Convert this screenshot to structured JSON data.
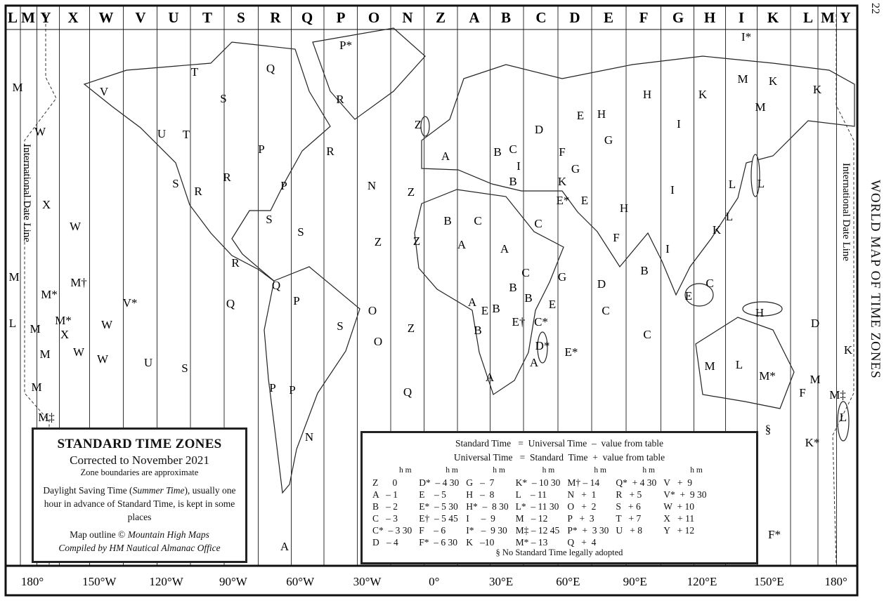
{
  "page_number": "22",
  "side_title": "WORLD MAP OF TIME ZONES",
  "header_zones": [
    "L",
    "M",
    "Y",
    "X",
    "W",
    "V",
    "U",
    "T",
    "S",
    "R",
    "Q",
    "P",
    "O",
    "N",
    "Z",
    "A",
    "B",
    "C",
    "D",
    "E",
    "F",
    "G",
    "H",
    "I",
    "K",
    "L",
    "M",
    "Y"
  ],
  "longitude_labels": [
    "180°",
    "150°W",
    "120°W",
    "90°W",
    "60°W",
    "30°W",
    "0°",
    "30°E",
    "60°E",
    "90°E",
    "120°E",
    "150°E",
    "180°"
  ],
  "date_line_label": "International Date Line",
  "map_zone_labels": [
    "M",
    "V",
    "W",
    "X",
    "W",
    "M",
    "M*",
    "M†",
    "V*",
    "L",
    "M",
    "M*",
    "X",
    "W",
    "W",
    "W",
    "M",
    "U",
    "S",
    "M",
    "M‡",
    "T",
    "S",
    "U",
    "T",
    "S",
    "R",
    "R",
    "P",
    "P",
    "P*",
    "R",
    "R",
    "Q",
    "S",
    "S",
    "R",
    "Q",
    "Q",
    "P",
    "S",
    "O",
    "O",
    "P",
    "N",
    "N",
    "Z",
    "Z",
    "Z",
    "Z",
    "Z",
    "Q",
    "P",
    "A",
    "A",
    "B",
    "C",
    "A",
    "A",
    "B",
    "A",
    "B",
    "A",
    "B",
    "C",
    "B",
    "C",
    "C",
    "D",
    "C*",
    "D*",
    "E",
    "E*",
    "E",
    "E",
    "F",
    "F",
    "G",
    "G",
    "H",
    "H",
    "I",
    "I",
    "I",
    "K",
    "K",
    "L",
    "L",
    "M",
    "M",
    "K",
    "L",
    "H",
    "I*",
    "K",
    "M",
    "L",
    "M*",
    "M‡",
    "M",
    "K",
    "L",
    "K*",
    "§",
    "D",
    "F",
    "F*",
    "E*",
    "C",
    "C",
    "B",
    "A",
    "B",
    "B",
    "E",
    "E†",
    "D",
    "H",
    "G",
    "C",
    "E",
    "I",
    "K"
  ],
  "title_box": {
    "title": "STANDARD TIME ZONES",
    "corrected": "Corrected to November 2021",
    "approx": "Zone boundaries are approximate",
    "dst_pre": "Daylight Saving Time (",
    "dst_em": "Summer Time",
    "dst_post": "), usually one hour in advance of Standard Time, is kept in some places",
    "outline_pre": "Map outline © ",
    "outline_em": "Mountain High Maps",
    "compiled": "Compiled by HM Nautical Almanac Office"
  },
  "legend": {
    "formula1": "Standard Time   =  Universal Time  –  value from table",
    "formula2": "Universal Time   =  Standard  Time  +  value from table",
    "hm": "h  m",
    "columns": [
      [
        "Z      0",
        "A   – 1",
        "B   – 2",
        "C   – 3",
        "C*  – 3 30",
        "D   – 4"
      ],
      [
        "D*  – 4 30",
        "E    – 5",
        "E*  – 5 30",
        "E†  – 5 45",
        "F    – 6",
        "F*  – 6 30"
      ],
      [
        "G   –  7",
        "H   –  8",
        "H*  –  8 30",
        "I     –  9",
        "I*   –  9 30",
        "K   –10"
      ],
      [
        "K*  – 10 30",
        "L    – 11",
        "L*  – 11 30",
        "M   – 12",
        "M‡ – 12 45",
        "M* – 13"
      ],
      [
        "M† – 14",
        "N   +  1",
        "O   +  2",
        "P   +  3",
        "P*  +  3 30",
        "Q   +  4"
      ],
      [
        "Q*  + 4 30",
        "R   + 5",
        "S   + 6",
        "T   + 7",
        "U   + 8"
      ],
      [
        "V   +  9",
        "V*  +  9 30",
        "W  + 10",
        "X   + 11",
        "Y   + 12"
      ]
    ],
    "note": "§ No Standard Time legally adopted"
  },
  "colors": {
    "ink": "#111111",
    "paper": "#ffffff"
  }
}
